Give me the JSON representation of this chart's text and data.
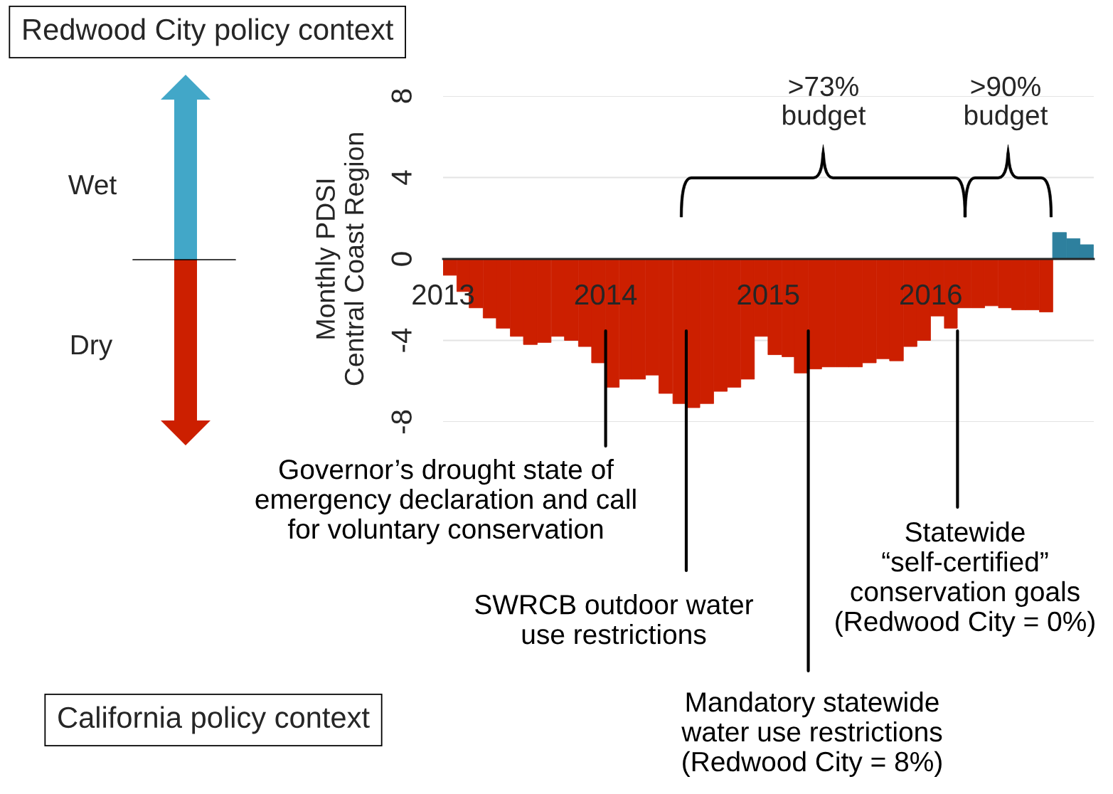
{
  "chart_data": {
    "type": "bar",
    "ylabel": "Monthly PDSI\nCentral Coast Region",
    "x": [
      "2013-01-16",
      "2013-02-15",
      "2013-03-16",
      "2013-04-16",
      "2013-05-16",
      "2013-06-16",
      "2013-07-16",
      "2013-08-16",
      "2013-09-16",
      "2013-10-16",
      "2013-11-16",
      "2013-12-16",
      "2014-01-16",
      "2014-02-15",
      "2014-03-16",
      "2014-04-16",
      "2014-05-16",
      "2014-06-16",
      "2014-07-16",
      "2014-08-16",
      "2014-09-16",
      "2014-10-16",
      "2014-11-16",
      "2014-12-16",
      "2015-01-16",
      "2015-02-15",
      "2015-03-16",
      "2015-04-16",
      "2015-05-16",
      "2015-06-16",
      "2015-07-16",
      "2015-08-16",
      "2015-09-16",
      "2015-10-16",
      "2015-11-16",
      "2015-12-16",
      "2016-01-16",
      "2016-02-15",
      "2016-03-16",
      "2016-04-16",
      "2016-05-16",
      "2016-06-16",
      "2016-07-16",
      "2016-08-16",
      "2016-09-16",
      "2016-10-16",
      "2016-11-16",
      "2016-12-16"
    ],
    "values": [
      -0.8,
      -1.6,
      -2.4,
      -2.9,
      -3.4,
      -3.8,
      -4.2,
      -4.1,
      -3.8,
      -4.0,
      -4.3,
      -5.1,
      -6.3,
      -5.9,
      -5.9,
      -5.7,
      -6.6,
      -7.1,
      -7.3,
      -7.1,
      -6.5,
      -6.3,
      -5.9,
      -3.8,
      -4.7,
      -4.8,
      -5.6,
      -5.4,
      -5.3,
      -5.3,
      -5.3,
      -5.1,
      -4.9,
      -5.0,
      -4.3,
      -4.0,
      -2.8,
      -3.4,
      -2.4,
      -2.4,
      -2.3,
      -2.4,
      -2.5,
      -2.5,
      -2.6,
      1.3,
      1.0,
      0.7
    ],
    "colors": [
      "#cc1f00",
      "#cc1f00",
      "#cc1f00",
      "#cc1f00",
      "#cc1f00",
      "#cc1f00",
      "#cc1f00",
      "#cc1f00",
      "#cc1f00",
      "#cc1f00",
      "#cc1f00",
      "#cc1f00",
      "#cc1f00",
      "#cc1f00",
      "#cc1f00",
      "#cc1f00",
      "#cc1f00",
      "#cc1f00",
      "#cc1f00",
      "#cc1f00",
      "#cc1f00",
      "#cc1f00",
      "#cc1f00",
      "#cc1f00",
      "#cc1f00",
      "#cc1f00",
      "#cc1f00",
      "#cc1f00",
      "#cc1f00",
      "#cc1f00",
      "#cc1f00",
      "#cc1f00",
      "#cc1f00",
      "#cc1f00",
      "#cc1f00",
      "#cc1f00",
      "#cc1f00",
      "#cc1f00",
      "#cc1f00",
      "#cc1f00",
      "#cc1f00",
      "#cc1f00",
      "#cc1f00",
      "#cc1f00",
      "#cc1f00",
      "#2e809e",
      "#2e809e",
      "#2e809e"
    ],
    "xlim": [
      "2013-01",
      "2017-01"
    ],
    "xticks": [
      {
        "value": "2013-01",
        "label": "2013"
      },
      {
        "value": "2014-01",
        "label": "2014"
      },
      {
        "value": "2015-01",
        "label": "2015"
      },
      {
        "value": "2016-01",
        "label": "2016"
      }
    ],
    "ylim": [
      -8,
      8
    ],
    "yticks": [
      -8,
      -4,
      0,
      4,
      8
    ],
    "grid": "y",
    "ref_lines": [
      {
        "axis": "x",
        "value": "2014-01",
        "label": "Governor’s drought state of\nemergency declaration and call\nfor voluntary conservation",
        "color": "#000000"
      },
      {
        "axis": "x",
        "value": "2014-07",
        "label": "SWRCB outdoor water\nuse restrictions",
        "color": "#000000"
      },
      {
        "axis": "x",
        "value": "2015-04",
        "label": "Mandatory statewide\nwater use restrictions\n(Redwood City = 8%)",
        "color": "#000000"
      },
      {
        "axis": "x",
        "value": "2016-03",
        "label": "Statewide\n“self-certified”\nconservation goals\n(Redwood City = 0%)",
        "color": "#000000"
      }
    ],
    "annotations": [
      "Redwood City policy context",
      "California policy context",
      "Wet",
      "Dry",
      ">73%\nbudget",
      ">90%\nbudget"
    ]
  }
}
